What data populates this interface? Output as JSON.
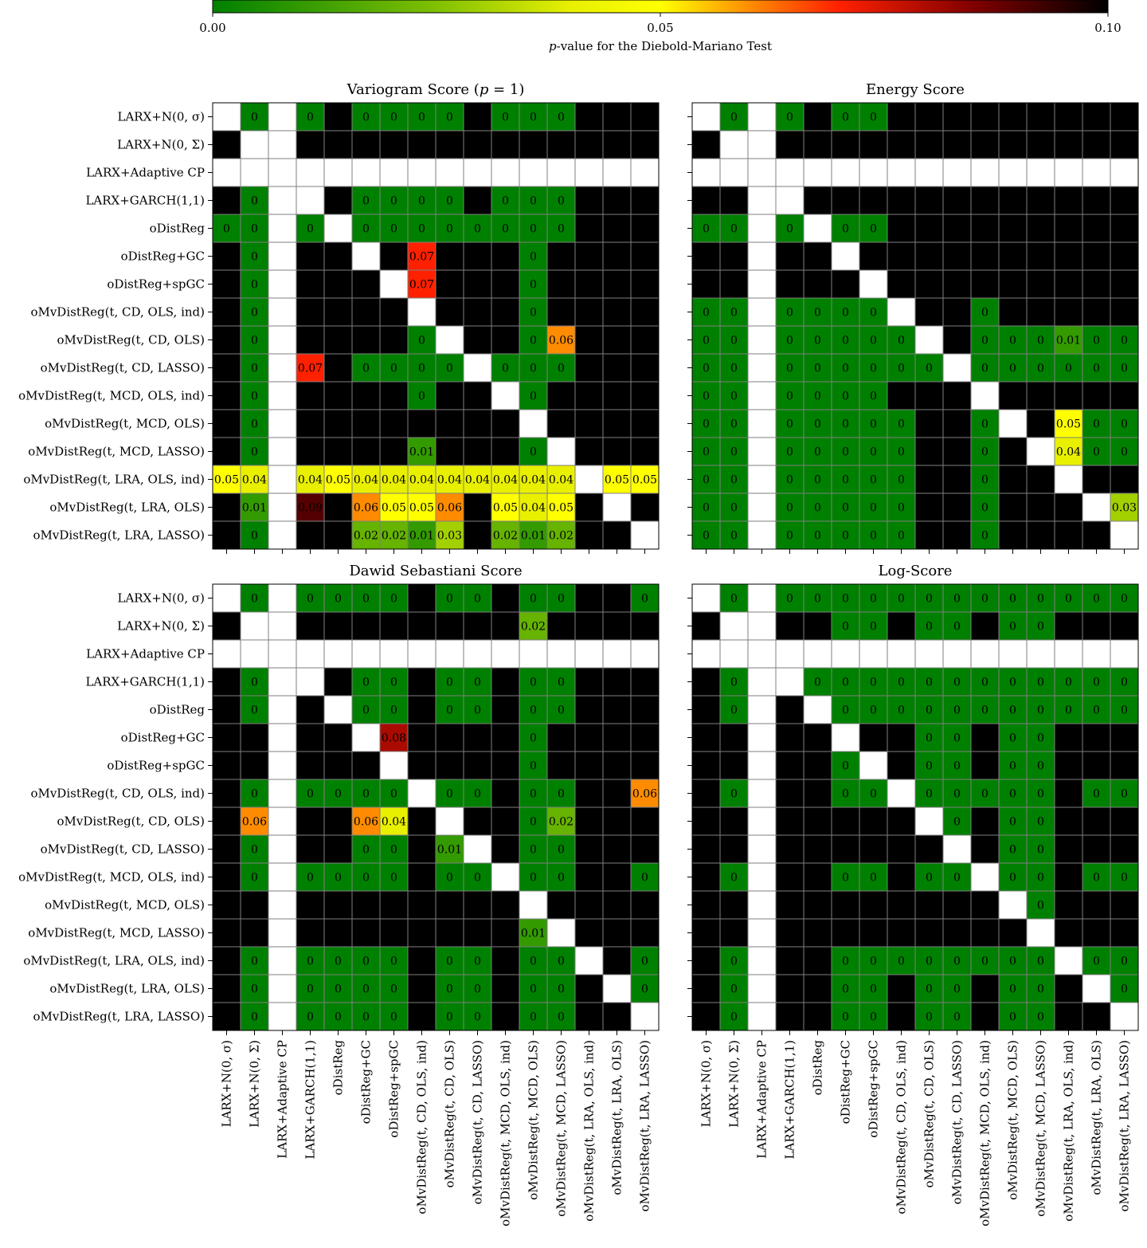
{
  "colorbar": {
    "label": "p-value for the Diebold-Mariano Test",
    "label_prefix": "p",
    "label_rest": "-value for the Diebold-Mariano Test",
    "min": 0,
    "max": 0.1,
    "ticks": [
      "0.00",
      "0.05",
      "0.10"
    ],
    "tick_values": [
      0,
      0.05,
      0.1
    ],
    "stops": [
      {
        "v": 0.0,
        "color": "#008000"
      },
      {
        "v": 0.025,
        "color": "#80c000"
      },
      {
        "v": 0.04,
        "color": "#e8f000"
      },
      {
        "v": 0.05,
        "color": "#ffff00"
      },
      {
        "v": 0.06,
        "color": "#ff8c00"
      },
      {
        "v": 0.07,
        "color": "#ff2000"
      },
      {
        "v": 0.085,
        "color": "#800000"
      },
      {
        "v": 0.1,
        "color": "#000000"
      }
    ]
  },
  "chart_data": {
    "type": "heatmap",
    "models": [
      "LARX+N(0, σ)",
      "LARX+N(0, Σ)",
      "LARX+Adaptive CP",
      "LARX+GARCH(1,1)",
      "oDistReg",
      "oDistReg+GC",
      "oDistReg+spGC",
      "oMvDistReg(t, CD, OLS, ind)",
      "oMvDistReg(t, CD, OLS)",
      "oMvDistReg(t, CD, LASSO)",
      "oMvDistReg(t, MCD, OLS, ind)",
      "oMvDistReg(t, MCD, OLS)",
      "oMvDistReg(t, MCD, LASSO)",
      "oMvDistReg(t, LRA, OLS, ind)",
      "oMvDistReg(t, LRA, OLS)",
      "oMvDistReg(t, LRA, LASSO)"
    ],
    "panels": [
      {
        "title": "Variogram Score (p = 1)",
        "title_pre": "Variogram Score (",
        "title_italic": "p",
        "title_post": " = 1)",
        "matrix": [
          [
            null,
            0,
            null,
            0,
            1,
            0,
            0,
            0,
            0,
            0.18,
            0,
            0,
            0,
            0.95,
            0.88,
            0.81
          ],
          [
            1,
            null,
            null,
            1,
            1,
            1,
            1,
            1,
            1,
            1,
            1,
            1,
            1,
            0.96,
            0.99,
            1
          ],
          [
            null,
            null,
            null,
            null,
            null,
            null,
            null,
            null,
            null,
            null,
            null,
            null,
            null,
            null,
            null,
            null
          ],
          [
            1,
            0,
            null,
            null,
            1,
            0,
            0,
            0,
            0,
            0.93,
            0,
            0,
            0,
            0.96,
            0.91,
            0.9
          ],
          [
            0,
            0,
            null,
            0,
            null,
            0,
            0,
            0,
            0,
            0,
            0,
            0,
            0,
            0.95,
            0.69,
            0.17
          ],
          [
            1,
            0,
            null,
            1,
            1,
            null,
            0.49,
            0.07,
            0.62,
            1,
            0.47,
            0,
            0.33,
            0.96,
            0.94,
            0.98
          ],
          [
            1,
            0,
            null,
            1,
            1,
            0.51,
            null,
            0.07,
            0.63,
            1,
            0.47,
            0,
            0.33,
            0.96,
            0.95,
            0.98
          ],
          [
            1,
            0,
            null,
            1,
            1,
            0.93,
            0.93,
            null,
            1,
            1,
            1,
            0,
            0.99,
            0.96,
            0.95,
            0.99
          ],
          [
            1,
            0,
            null,
            1,
            1,
            0.38,
            0.37,
            0,
            null,
            1,
            0.25,
            0,
            0.06,
            0.96,
            0.94,
            0.97
          ],
          [
            0.82,
            0,
            null,
            0.07,
            1,
            0,
            0,
            0,
            0,
            null,
            0,
            0,
            0,
            0.96,
            0.9,
            0.86
          ],
          [
            1,
            0,
            null,
            1,
            1,
            0.53,
            0.53,
            0,
            0.75,
            1,
            null,
            0,
            0.21,
            0.96,
            0.95,
            0.98
          ],
          [
            1,
            0,
            null,
            1,
            1,
            1,
            1,
            1,
            1,
            1,
            1,
            null,
            1,
            0.96,
            0.96,
            0.99
          ],
          [
            1,
            0,
            null,
            1,
            1,
            0.67,
            0.67,
            0.01,
            0.94,
            1,
            0.79,
            0,
            null,
            0.96,
            0.95,
            0.98
          ],
          [
            0.05,
            0.04,
            null,
            0.04,
            0.05,
            0.04,
            0.04,
            0.04,
            0.04,
            0.04,
            0.04,
            0.04,
            0.04,
            null,
            0.05,
            0.05
          ],
          [
            0.12,
            0.01,
            null,
            0.09,
            0.31,
            0.06,
            0.05,
            0.05,
            0.06,
            0.1,
            0.05,
            0.04,
            0.05,
            0.95,
            null,
            0.2
          ],
          [
            0.19,
            0,
            null,
            0.1,
            0.83,
            0.02,
            0.02,
            0.01,
            0.03,
            0.14,
            0.02,
            0.01,
            0.02,
            0.95,
            0.8,
            null
          ]
        ]
      },
      {
        "title": "Energy Score",
        "matrix": [
          [
            null,
            0,
            null,
            0,
            1,
            0,
            0,
            1,
            1,
            1,
            1,
            1,
            1,
            1,
            1,
            1
          ],
          [
            1,
            null,
            null,
            0.13,
            1,
            0.39,
            0.41,
            1,
            1,
            1,
            1,
            1,
            1,
            1,
            1,
            1
          ],
          [
            null,
            null,
            null,
            null,
            null,
            null,
            null,
            null,
            null,
            null,
            null,
            null,
            null,
            null,
            null,
            null
          ],
          [
            1,
            0.87,
            null,
            null,
            1,
            0.53,
            0.55,
            1,
            1,
            1,
            1,
            1,
            1,
            1,
            1,
            1
          ],
          [
            0,
            0,
            null,
            0,
            null,
            0,
            0,
            1,
            1,
            1,
            1,
            1,
            1,
            1,
            1,
            1
          ],
          [
            1,
            0.61,
            null,
            0.47,
            1,
            null,
            0.83,
            1,
            1,
            1,
            1,
            1,
            1,
            1,
            1,
            1
          ],
          [
            1,
            0.59,
            null,
            0.45,
            1,
            0.17,
            null,
            1,
            1,
            1,
            1,
            1,
            1,
            1,
            1,
            1
          ],
          [
            0,
            0,
            null,
            0,
            0,
            0,
            0,
            null,
            1,
            1,
            0,
            1,
            1,
            1,
            1,
            1
          ],
          [
            0,
            0,
            null,
            0,
            0,
            0,
            0,
            0,
            null,
            1,
            0,
            0,
            0,
            0.01,
            0,
            0
          ],
          [
            0,
            0,
            null,
            0,
            0,
            0,
            0,
            0,
            0,
            null,
            0,
            0,
            0,
            0,
            0,
            0
          ],
          [
            0,
            0,
            null,
            0,
            0,
            0,
            0,
            1,
            1,
            1,
            null,
            1,
            1,
            1,
            1,
            1
          ],
          [
            0,
            0,
            null,
            0,
            0,
            0,
            0,
            0,
            1,
            1,
            0,
            null,
            0.63,
            0.05,
            0,
            0
          ],
          [
            0,
            0,
            null,
            0,
            0,
            0,
            0,
            0,
            1,
            1,
            0,
            0.37,
            null,
            0.04,
            0,
            0
          ],
          [
            0,
            0,
            null,
            0,
            0,
            0,
            0,
            0,
            0.99,
            1,
            0,
            0.95,
            0.96,
            null,
            0.65,
            0.53
          ],
          [
            0,
            0,
            null,
            0,
            0,
            0,
            0,
            0,
            1,
            1,
            0,
            1,
            1,
            0.35,
            null,
            0.03
          ],
          [
            0,
            0,
            null,
            0,
            0,
            0,
            0,
            0,
            1,
            1,
            0,
            1,
            1,
            0.47,
            0.97,
            null
          ]
        ]
      },
      {
        "title": "Dawid Sebastiani Score",
        "matrix": [
          [
            null,
            0,
            null,
            0,
            0,
            0,
            0,
            0.31,
            0,
            0,
            0.38,
            0,
            0,
            0.4,
            0.21,
            0
          ],
          [
            1,
            null,
            null,
            1,
            1,
            0.68,
            0.61,
            1,
            0.94,
            1,
            1,
            0.02,
            0.45,
            1,
            1,
            1
          ],
          [
            null,
            null,
            null,
            null,
            null,
            null,
            null,
            null,
            null,
            null,
            null,
            null,
            null,
            null,
            null,
            null
          ],
          [
            1,
            0,
            null,
            null,
            0.82,
            0,
            0,
            1,
            0,
            0,
            1,
            0,
            0,
            1,
            1,
            1
          ],
          [
            1,
            0,
            null,
            0.18,
            null,
            0,
            0,
            1,
            0,
            0,
            1,
            0,
            0,
            1,
            1,
            1
          ],
          [
            1,
            0.32,
            null,
            1,
            1,
            null,
            0.08,
            1,
            0.94,
            1,
            1,
            0,
            0.18,
            1,
            1,
            1
          ],
          [
            1,
            0.39,
            null,
            1,
            1,
            0.92,
            null,
            1,
            0.96,
            1,
            1,
            0,
            0.27,
            1,
            1,
            1
          ],
          [
            0.69,
            0,
            null,
            0,
            0,
            0,
            0,
            null,
            0,
            0,
            0.7,
            0,
            0,
            0.69,
            0.58,
            0.06
          ],
          [
            1,
            0.06,
            null,
            1,
            1,
            0.06,
            0.04,
            1,
            null,
            0.99,
            1,
            0,
            0.02,
            1,
            1,
            1
          ],
          [
            1,
            0,
            null,
            1,
            1,
            0,
            0,
            1,
            0.01,
            null,
            1,
            0,
            0,
            1,
            1,
            1
          ],
          [
            0.62,
            0,
            null,
            0,
            0,
            0,
            0,
            0.3,
            0,
            0,
            null,
            0,
            0,
            0.57,
            0.3,
            0
          ],
          [
            1,
            0.98,
            null,
            1,
            1,
            1,
            1,
            1,
            1,
            1,
            1,
            null,
            0.99,
            1,
            1,
            1
          ],
          [
            1,
            0.55,
            null,
            1,
            1,
            0.82,
            0.73,
            1,
            0.98,
            1,
            1,
            0.01,
            null,
            1,
            1,
            1
          ],
          [
            0.6,
            0,
            null,
            0,
            0,
            0,
            0,
            0.31,
            0,
            0,
            0.43,
            0,
            0,
            null,
            0.15,
            0
          ],
          [
            0.79,
            0,
            null,
            0,
            0,
            0,
            0,
            0.42,
            0,
            0,
            0.7,
            0,
            0,
            0.85,
            null,
            0
          ],
          [
            1,
            0,
            null,
            0,
            0,
            0,
            0,
            0.94,
            0,
            0,
            1,
            0,
            0,
            1,
            1,
            null
          ]
        ]
      },
      {
        "title": "Log-Score",
        "matrix": [
          [
            null,
            0,
            null,
            0,
            0,
            0,
            0,
            0,
            0,
            0,
            0,
            0,
            0,
            0,
            0,
            0
          ],
          [
            1,
            null,
            null,
            1,
            1,
            0,
            0,
            1,
            0,
            0,
            1,
            0,
            0,
            1,
            1,
            1
          ],
          [
            null,
            null,
            null,
            null,
            null,
            null,
            null,
            null,
            null,
            null,
            null,
            null,
            null,
            null,
            null,
            null
          ],
          [
            1,
            0,
            null,
            null,
            0,
            0,
            0,
            0,
            0,
            0,
            0,
            0,
            0,
            0,
            0,
            0
          ],
          [
            1,
            0,
            null,
            1,
            null,
            0,
            0,
            0,
            0,
            0,
            0,
            0,
            0,
            0,
            0,
            0
          ],
          [
            1,
            1,
            null,
            1,
            1,
            null,
            1,
            1,
            0,
            0,
            1,
            0,
            0,
            1,
            1,
            1
          ],
          [
            1,
            1,
            null,
            1,
            1,
            0,
            null,
            1,
            0,
            0,
            1,
            0,
            0,
            1,
            1,
            1
          ],
          [
            1,
            0,
            null,
            1,
            1,
            0,
            0,
            null,
            0,
            0,
            0,
            0,
            0,
            1,
            0,
            0
          ],
          [
            1,
            1,
            null,
            1,
            1,
            1,
            1,
            1,
            null,
            0,
            1,
            0,
            0,
            1,
            1,
            1
          ],
          [
            1,
            1,
            null,
            1,
            1,
            1,
            1,
            1,
            1,
            null,
            1,
            0,
            0,
            1,
            1,
            1
          ],
          [
            1,
            0,
            null,
            1,
            1,
            0,
            0,
            1,
            0,
            0,
            null,
            0,
            0,
            1,
            0,
            0
          ],
          [
            1,
            1,
            null,
            1,
            1,
            1,
            1,
            1,
            1,
            1,
            1,
            null,
            0,
            1,
            1,
            1
          ],
          [
            1,
            1,
            null,
            1,
            1,
            1,
            1,
            1,
            1,
            1,
            1,
            1,
            null,
            1,
            1,
            1
          ],
          [
            1,
            0,
            null,
            1,
            1,
            0,
            0,
            0,
            0,
            0,
            0,
            0,
            0,
            null,
            0,
            0
          ],
          [
            1,
            0,
            null,
            1,
            1,
            0,
            0,
            1,
            0,
            0,
            1,
            0,
            0,
            1,
            null,
            0
          ],
          [
            1,
            0,
            null,
            1,
            1,
            0,
            0,
            1,
            0,
            0,
            1,
            0,
            0,
            1,
            1,
            null
          ]
        ]
      }
    ]
  }
}
